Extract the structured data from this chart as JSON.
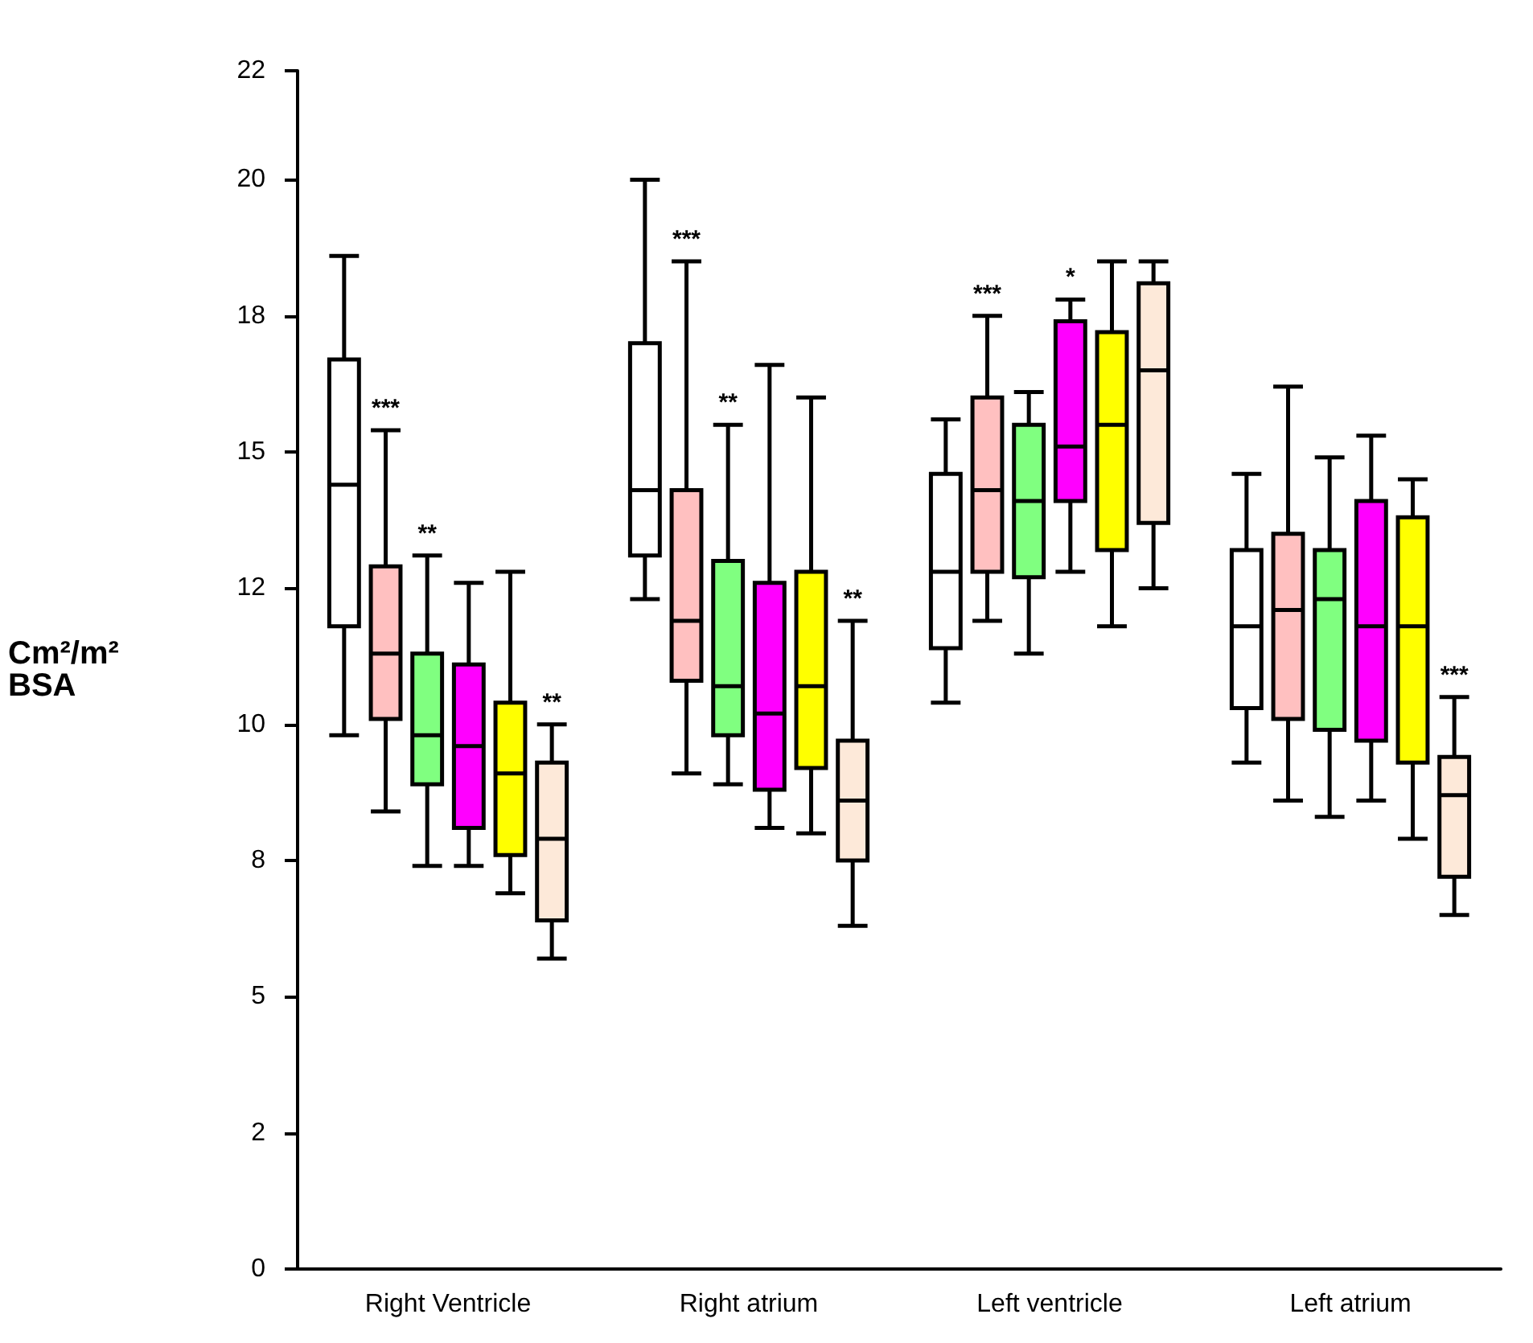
{
  "chart_data": {
    "type": "box",
    "ylabel": "Cm²/m²\nBSA",
    "categories": [
      "Right Ventricle",
      "Right atrium",
      "Left ventricle",
      "Left atrium"
    ],
    "ylim": [
      0,
      22
    ],
    "yticks": [
      0,
      {
        "value": 2.5,
        "label": "2"
      },
      5,
      {
        "value": 7.5,
        "label": "8"
      },
      10,
      {
        "value": 12.5,
        "label": "12"
      },
      15,
      {
        "value": 17.5,
        "label": "18"
      },
      20,
      22
    ],
    "grid": false,
    "series": [
      {
        "color": "#ffffff",
        "boxes": [
          {
            "low": 9.8,
            "q1": 11.8,
            "median": 14.4,
            "q3": 16.7,
            "high": 18.6
          },
          {
            "low": 12.3,
            "q1": 13.1,
            "median": 14.3,
            "q3": 17.0,
            "high": 20.0
          },
          {
            "low": 10.4,
            "q1": 11.4,
            "median": 12.8,
            "q3": 14.6,
            "high": 15.6
          },
          {
            "low": 9.3,
            "q1": 10.3,
            "median": 11.8,
            "q3": 13.2,
            "high": 14.6
          }
        ]
      },
      {
        "color": "#ffc0c0",
        "boxes": [
          {
            "low": 8.4,
            "q1": 10.1,
            "median": 11.3,
            "q3": 12.9,
            "high": 15.4
          },
          {
            "low": 9.1,
            "q1": 10.8,
            "median": 11.9,
            "q3": 14.3,
            "high": 18.5
          },
          {
            "low": 11.9,
            "q1": 12.8,
            "median": 14.3,
            "q3": 16.0,
            "high": 17.5
          },
          {
            "low": 8.6,
            "q1": 10.1,
            "median": 12.1,
            "q3": 13.5,
            "high": 16.2
          }
        ],
        "value_labels": [
          "***",
          "***",
          "***",
          null
        ]
      },
      {
        "color": "#80ff80",
        "boxes": [
          {
            "low": 7.4,
            "q1": 8.9,
            "median": 9.8,
            "q3": 11.3,
            "high": 13.1
          },
          {
            "low": 8.9,
            "q1": 9.8,
            "median": 10.7,
            "q3": 13.0,
            "high": 15.5
          },
          {
            "low": 11.3,
            "q1": 12.7,
            "median": 14.1,
            "q3": 15.5,
            "high": 16.1
          },
          {
            "low": 8.3,
            "q1": 9.9,
            "median": 12.3,
            "q3": 13.2,
            "high": 14.9
          }
        ],
        "value_labels": [
          "**",
          "**",
          null,
          null
        ]
      },
      {
        "color": "#ff00ff",
        "boxes": [
          {
            "low": 7.4,
            "q1": 8.1,
            "median": 9.6,
            "q3": 11.1,
            "high": 12.6
          },
          {
            "low": 8.1,
            "q1": 8.8,
            "median": 10.2,
            "q3": 12.6,
            "high": 16.6
          },
          {
            "low": 12.8,
            "q1": 14.1,
            "median": 15.1,
            "q3": 17.4,
            "high": 17.8
          },
          {
            "low": 8.6,
            "q1": 9.7,
            "median": 11.8,
            "q3": 14.1,
            "high": 15.3
          }
        ],
        "value_labels": [
          null,
          null,
          "*",
          null
        ]
      },
      {
        "color": "#ffff00",
        "boxes": [
          {
            "low": 6.9,
            "q1": 7.6,
            "median": 9.1,
            "q3": 10.4,
            "high": 12.8
          },
          {
            "low": 8.0,
            "q1": 9.2,
            "median": 10.7,
            "q3": 12.8,
            "high": 16.0
          },
          {
            "low": 11.8,
            "q1": 13.2,
            "median": 15.5,
            "q3": 17.2,
            "high": 18.5
          },
          {
            "low": 7.9,
            "q1": 9.3,
            "median": 11.8,
            "q3": 13.8,
            "high": 14.5
          }
        ]
      },
      {
        "color": "#fde9d9",
        "boxes": [
          {
            "low": 5.7,
            "q1": 6.4,
            "median": 7.9,
            "q3": 9.3,
            "high": 10.0
          },
          {
            "low": 6.3,
            "q1": 7.5,
            "median": 8.6,
            "q3": 9.7,
            "high": 11.9
          },
          {
            "low": 12.5,
            "q1": 13.7,
            "median": 16.5,
            "q3": 18.1,
            "high": 18.5
          },
          {
            "low": 6.5,
            "q1": 7.2,
            "median": 8.7,
            "q3": 9.4,
            "high": 10.5
          }
        ],
        "value_labels": [
          "**",
          "**",
          null,
          "***"
        ]
      }
    ]
  }
}
